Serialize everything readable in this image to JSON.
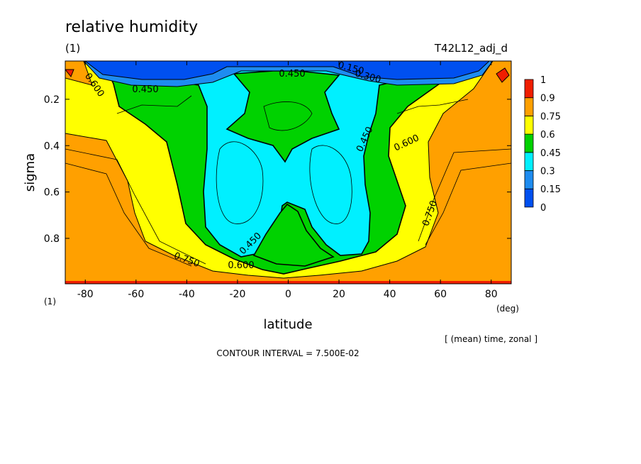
{
  "title": "relative humidity",
  "subtitle_left": "(1)",
  "subtitle_right": "T42L12_adj_d",
  "unit_left_bottom": "(1)",
  "x_unit": "(deg)",
  "note": "[ (mean) time, zonal ]",
  "contour_interval_text": "CONTOUR INTERVAL = 7.500E-02",
  "chart_data": {
    "type": "contour",
    "title": "relative humidity",
    "xlabel": "latitude",
    "ylabel": "sigma",
    "xlim": [
      -87.9,
      87.9
    ],
    "ylim": [
      0.996,
      0.035
    ],
    "x_ticks": [
      "-80",
      "-60",
      "-40",
      "-20",
      "0",
      "20",
      "40",
      "60",
      "80"
    ],
    "y_ticks": [
      "0.2",
      "0.4",
      "0.6",
      "0.8"
    ],
    "contour_interval": 0.075,
    "contour_labels": [
      "0.450",
      "0.450",
      "0.600",
      "0.600",
      "0.450",
      "0.450",
      "0.750",
      "0.600",
      "0.750",
      "0.150",
      "0.300"
    ],
    "colorbar": {
      "levels": [
        "0",
        "0.15",
        "0.3",
        "0.45",
        "0.6",
        "0.75",
        "0.9",
        "1"
      ],
      "colors": [
        "#0050f0",
        "#1e8cf0",
        "#00f0ff",
        "#00d200",
        "#ffff00",
        "#ffa000",
        "#f01e00"
      ]
    },
    "fill_colors": {
      "red": "#f01e00",
      "orange": "#ffa000",
      "yellow": "#ffff00",
      "green": "#00d200",
      "cyan": "#00f0ff",
      "mid_blue": "#1e8cf0",
      "blue": "#0050f0"
    }
  }
}
